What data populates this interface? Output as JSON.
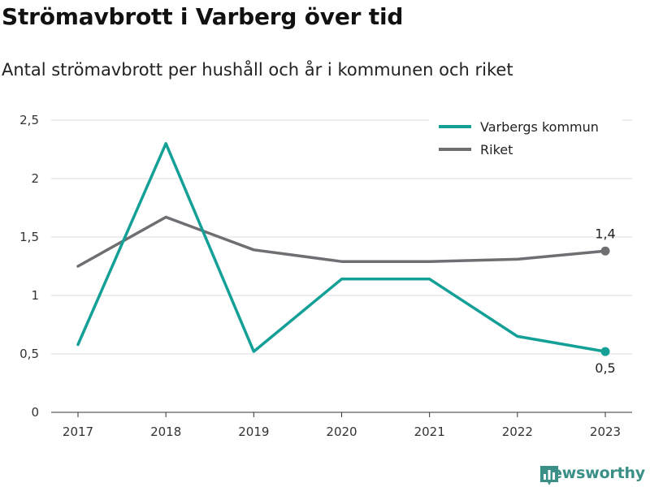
{
  "title": "Strömavbrott i Varberg över tid",
  "subtitle": "Antal strömavbrott per hushåll och år i kommunen och riket",
  "brand": {
    "name": "Newsworthy",
    "icon": "bar-chart-icon",
    "color": "#3a8f86"
  },
  "chart_data": {
    "type": "line",
    "x": [
      "2017",
      "2018",
      "2019",
      "2020",
      "2021",
      "2022",
      "2023"
    ],
    "ylim": [
      0,
      2.5
    ],
    "yticks": [
      0,
      0.5,
      1,
      1.5,
      2,
      2.5
    ],
    "ytick_labels": [
      "0",
      "0,5",
      "1",
      "1,5",
      "2",
      "2,5"
    ],
    "grid": true,
    "legend_position": "top-right",
    "series": [
      {
        "name": "Varbergs kommun",
        "color": "#14a097",
        "values": [
          0.58,
          2.3,
          0.52,
          1.14,
          1.14,
          0.65,
          0.52
        ],
        "end_label": "0,5",
        "end_label_position": "below"
      },
      {
        "name": "Riket",
        "color": "#6e6e73",
        "values": [
          1.25,
          1.67,
          1.39,
          1.29,
          1.29,
          1.31,
          1.38
        ],
        "end_label": "1,4",
        "end_label_position": "above"
      }
    ]
  }
}
